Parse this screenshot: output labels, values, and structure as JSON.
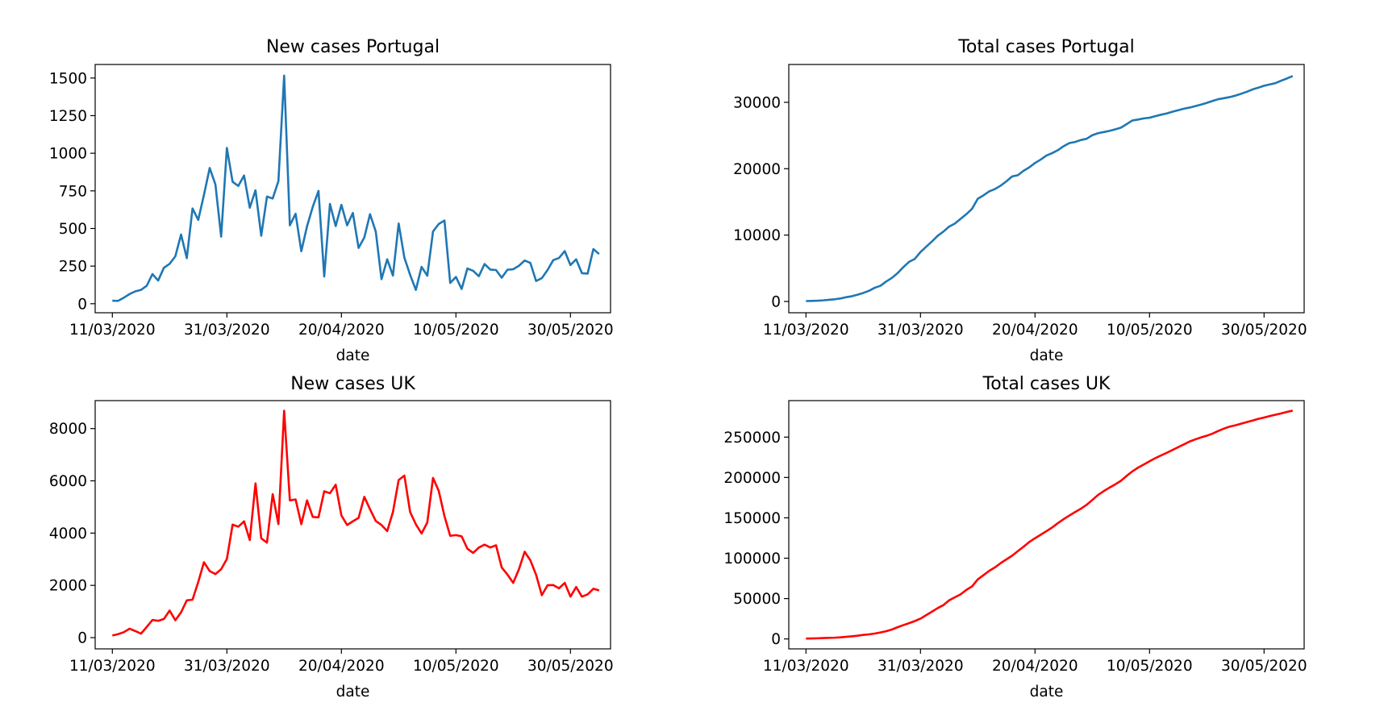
{
  "chart_data": [
    {
      "type": "line",
      "title": "New cases Portugal",
      "xlabel": "date",
      "ylabel": "",
      "x_start": "11/03/2020",
      "x_end": "04/06/2020",
      "xlim": [
        "08/03/2020",
        "06/06/2020"
      ],
      "ylim": [
        -60,
        1590
      ],
      "xticks": [
        "11/03/2020",
        "31/03/2020",
        "20/04/2020",
        "10/05/2020",
        "30/05/2020"
      ],
      "yticks": [
        0,
        250,
        500,
        750,
        1000,
        1250,
        1500
      ],
      "color": "#1f77b4",
      "series": [
        {
          "values": [
            20,
            19,
            40,
            64,
            82,
            92,
            119,
            197,
            154,
            239,
            265,
            315,
            460,
            303,
            633,
            557,
            724,
            902,
            792,
            446,
            1035,
            810,
            783,
            852,
            638,
            754,
            452,
            712,
            699,
            815,
            1516,
            521,
            598,
            349,
            515,
            644,
            750,
            181,
            663,
            516,
            657,
            521,
            603,
            371,
            440,
            595,
            480,
            163,
            295,
            187,
            533,
            306,
            192,
            92,
            245,
            186,
            480,
            530,
            553,
            138,
            178,
            98,
            234,
            219,
            183,
            264,
            227,
            224,
            173,
            226,
            229,
            252,
            287,
            271,
            151,
            170,
            224,
            290,
            304,
            350,
            257,
            295,
            203,
            200,
            363,
            330
          ]
        }
      ]
    },
    {
      "type": "line",
      "title": "Total cases Portugal",
      "xlabel": "date",
      "ylabel": "",
      "x_start": "11/03/2020",
      "x_end": "04/06/2020",
      "xlim": [
        "08/03/2020",
        "06/06/2020"
      ],
      "ylim": [
        -1700,
        35700
      ],
      "xticks": [
        "11/03/2020",
        "31/03/2020",
        "20/04/2020",
        "10/05/2020",
        "30/05/2020"
      ],
      "yticks": [
        0,
        10000,
        20000,
        30000
      ],
      "color": "#1f77b4",
      "series": [
        {
          "values": [
            59,
            78,
            112,
            169,
            245,
            331,
            448,
            642,
            785,
            1020,
            1280,
            1600,
            2060,
            2362,
            2995,
            3544,
            4268,
            5170,
            5962,
            6408,
            7443,
            8251,
            9034,
            9886,
            10524,
            11278,
            11730,
            12442,
            13141,
            13956,
            15472,
            15987,
            16585,
            16934,
            17448,
            18091,
            18841,
            19022,
            19685,
            20206,
            20863,
            21379,
            21982,
            22353,
            22797,
            23392,
            23864,
            24027,
            24322,
            24505,
            25045,
            25351,
            25524,
            25702,
            25929,
            26182,
            26715,
            27268,
            27406,
            27581,
            27679,
            27913,
            28132,
            28319,
            28583,
            28810,
            29036,
            29209,
            29432,
            29660,
            29912,
            30200,
            30471,
            30623,
            30788,
            31007,
            31292,
            31596,
            31946,
            32203,
            32500,
            32700,
            32895,
            33261,
            33592,
            33969
          ]
        }
      ]
    },
    {
      "type": "line",
      "title": "New cases UK",
      "xlabel": "date",
      "ylabel": "",
      "x_start": "11/03/2020",
      "x_end": "04/06/2020",
      "xlim": [
        "08/03/2020",
        "06/06/2020"
      ],
      "ylim": [
        -430,
        9070
      ],
      "xticks": [
        "11/03/2020",
        "31/03/2020",
        "20/04/2020",
        "10/05/2020",
        "30/05/2020"
      ],
      "yticks": [
        0,
        2000,
        4000,
        6000,
        8000
      ],
      "color": "#ff0000",
      "series": [
        {
          "values": [
            83,
            134,
            208,
            342,
            253,
            152,
            407,
            676,
            643,
            714,
            1035,
            665,
            967,
            1427,
            1452,
            2129,
            2885,
            2546,
            2433,
            2619,
            3009,
            4324,
            4244,
            4450,
            3735,
            5903,
            3802,
            3634,
            5491,
            4344,
            8681,
            5252,
            5288,
            4342,
            5252,
            4617,
            4603,
            5599,
            5525,
            5850,
            4676,
            4309,
            4451,
            4583,
            5386,
            4913,
            4463,
            4309,
            4076,
            4806,
            6032,
            6201,
            4806,
            4339,
            3985,
            4406,
            6111,
            5614,
            4649,
            3896,
            3923,
            3877,
            3403,
            3242,
            3446,
            3560,
            3451,
            3534,
            2684,
            2412,
            2095,
            2615,
            3287,
            2959,
            2405,
            1625,
            2004,
            2012,
            1887,
            2095,
            1570,
            1936,
            1570,
            1653,
            1871,
            1805
          ]
        }
      ]
    },
    {
      "type": "line",
      "title": "Total cases UK",
      "xlabel": "date",
      "ylabel": "",
      "x_start": "11/03/2020",
      "x_end": "04/06/2020",
      "xlim": [
        "08/03/2020",
        "06/06/2020"
      ],
      "ylim": [
        -12300,
        295200
      ],
      "xticks": [
        "11/03/2020",
        "31/03/2020",
        "20/04/2020",
        "10/05/2020",
        "30/05/2020"
      ],
      "yticks": [
        0,
        50000,
        100000,
        150000,
        200000,
        250000
      ],
      "color": "#ff0000",
      "series": [
        {
          "values": [
            456,
            590,
            798,
            1140,
            1391,
            1543,
            1950,
            2626,
            3269,
            3983,
            5018,
            5683,
            6650,
            8077,
            9529,
            11658,
            14543,
            17089,
            19522,
            22141,
            25150,
            29474,
            33718,
            38168,
            41903,
            47806,
            51608,
            55242,
            60733,
            65077,
            73758,
            79010,
            84298,
            88640,
            93892,
            98509,
            103112,
            108711,
            114236,
            120086,
            124762,
            129071,
            133522,
            138105,
            143491,
            148404,
            152867,
            157176,
            161252,
            166058,
            172090,
            178291,
            183097,
            187436,
            191421,
            195827,
            201938,
            207552,
            212201,
            216097,
            220020,
            223897,
            227300,
            230542,
            233988,
            237548,
            240999,
            244533,
            247217,
            249629,
            251724,
            254339,
            257626,
            260585,
            262990,
            264615,
            266619,
            268631,
            270518,
            272613,
            274183,
            276119,
            277689,
            279342,
            281213,
            282800
          ]
        }
      ]
    }
  ]
}
